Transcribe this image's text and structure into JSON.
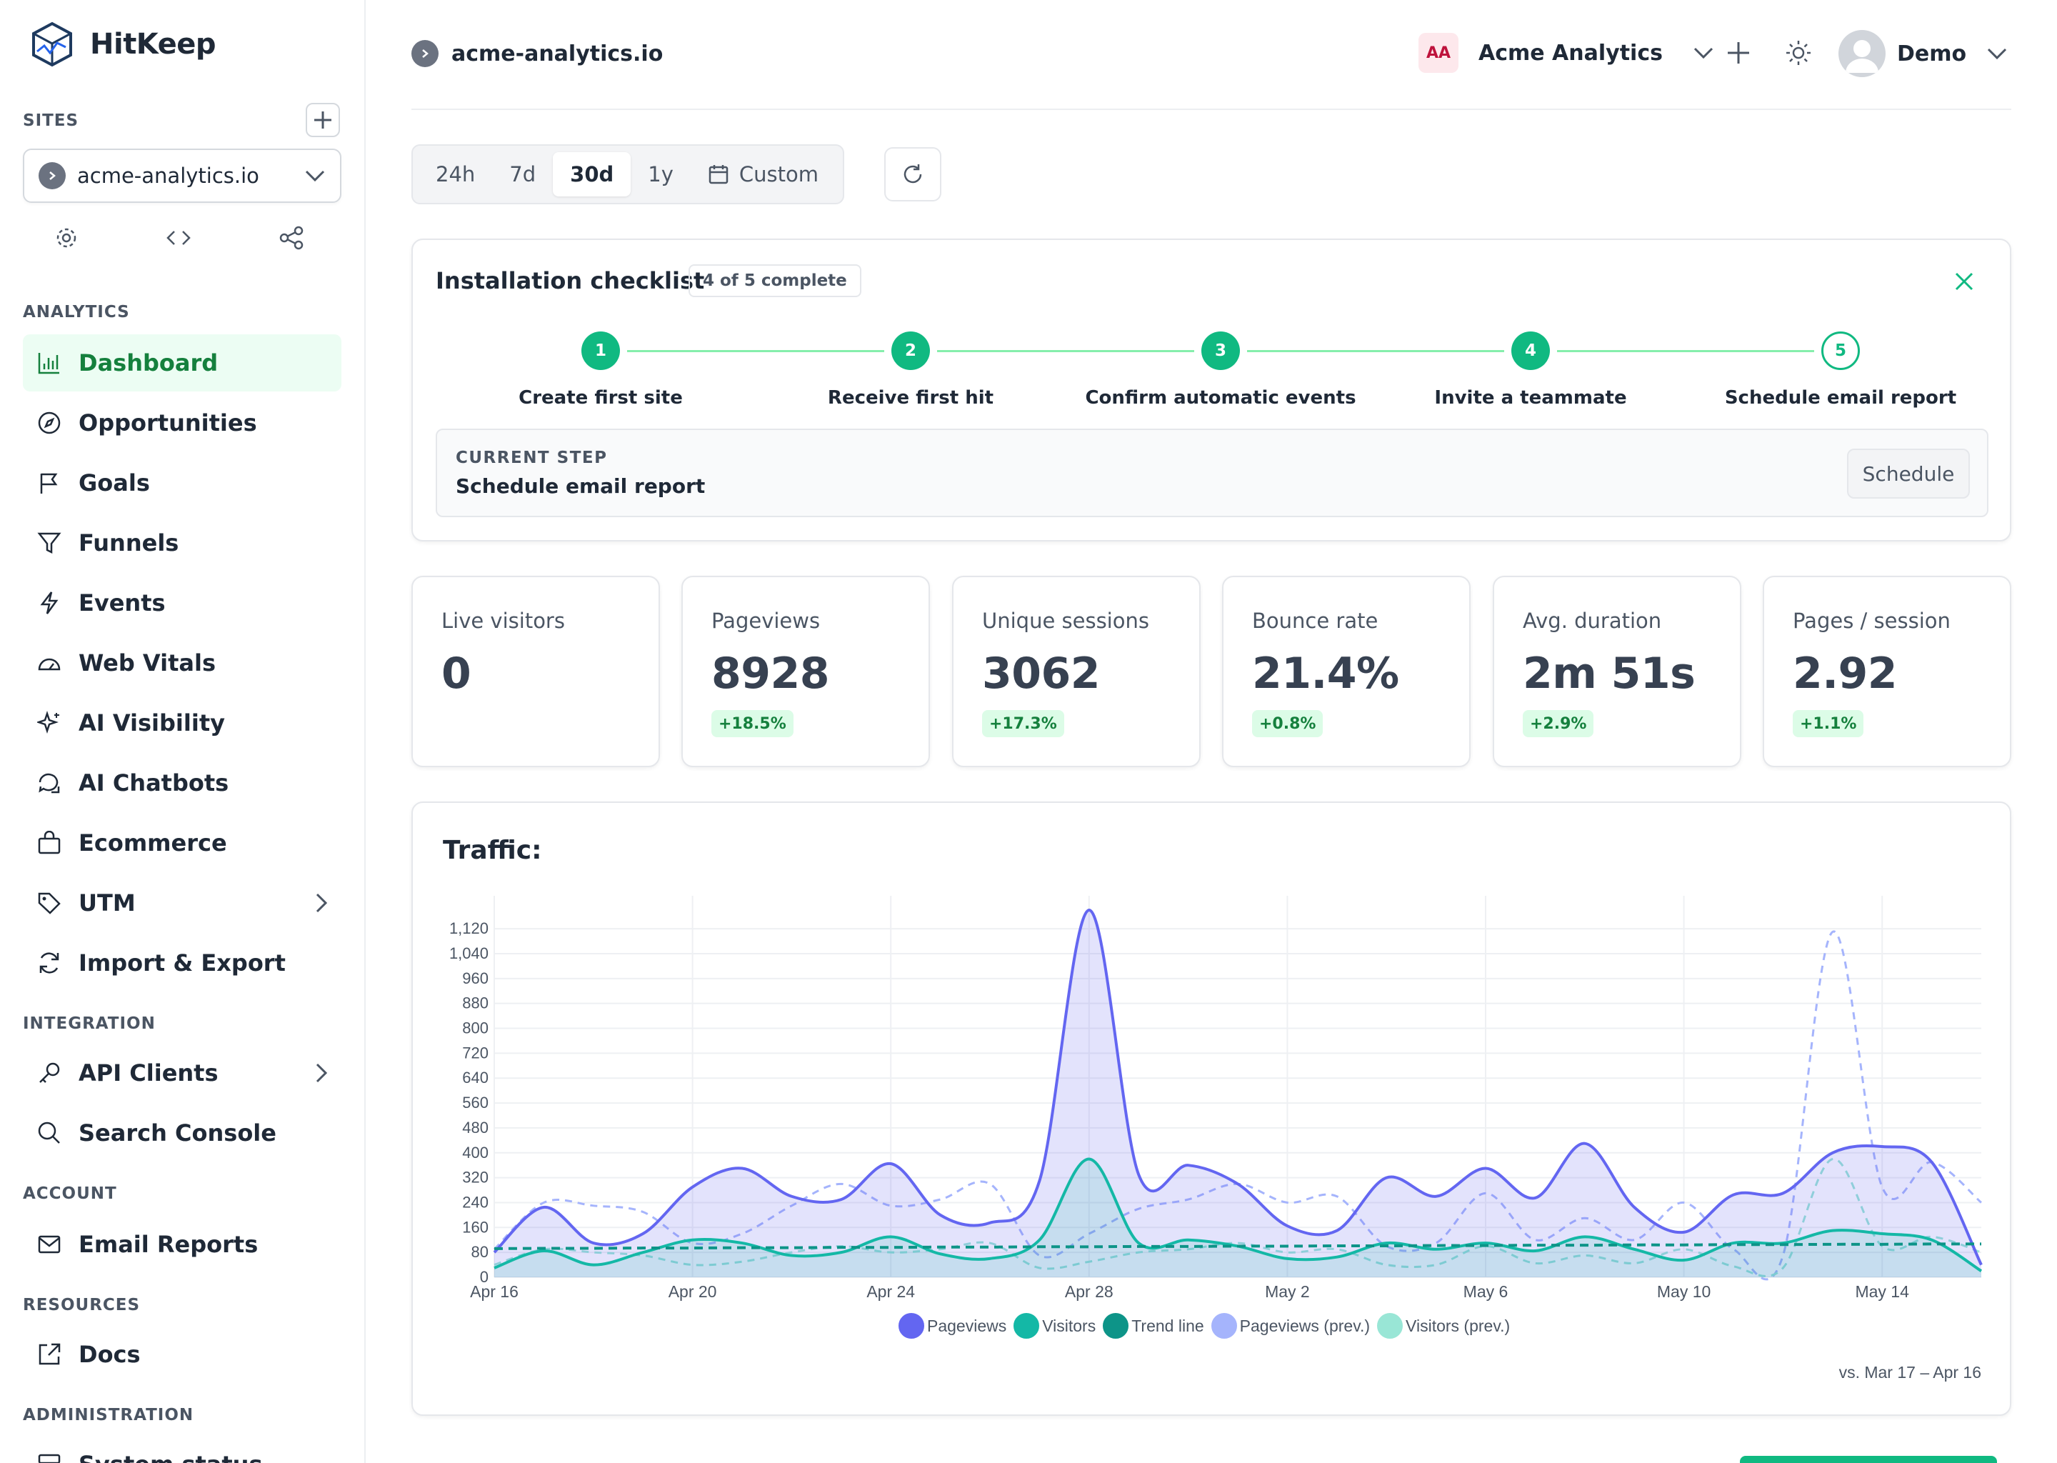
{
  "brand": {
    "name": "HitKeep"
  },
  "sidebar": {
    "sites_label": "SITES",
    "site": "acme-analytics.io",
    "analytics_label": "ANALYTICS",
    "integration_label": "INTEGRATION",
    "account_label": "ACCOUNT",
    "resources_label": "RESOURCES",
    "administration_label": "ADMINISTRATION",
    "items": [
      {
        "label": "Dashboard",
        "icon": "bar-chart-icon"
      },
      {
        "label": "Opportunities",
        "icon": "compass-icon"
      },
      {
        "label": "Goals",
        "icon": "flag-icon"
      },
      {
        "label": "Funnels",
        "icon": "funnel-icon"
      },
      {
        "label": "Events",
        "icon": "lightning-icon"
      },
      {
        "label": "Web Vitals",
        "icon": "gauge-icon"
      },
      {
        "label": "AI Visibility",
        "icon": "sparkle-icon"
      },
      {
        "label": "AI Chatbots",
        "icon": "chat-icon"
      },
      {
        "label": "Ecommerce",
        "icon": "bag-icon"
      },
      {
        "label": "UTM",
        "icon": "tag-icon"
      },
      {
        "label": "Import & Export",
        "icon": "sync-icon"
      }
    ],
    "integration_items": [
      {
        "label": "API Clients",
        "icon": "key-icon"
      },
      {
        "label": "Search Console",
        "icon": "search-icon"
      }
    ],
    "account_items": [
      {
        "label": "Email Reports",
        "icon": "mail-icon"
      }
    ],
    "resource_items": [
      {
        "label": "Docs",
        "icon": "external-link-icon"
      }
    ],
    "admin_items": [
      {
        "label": "System status",
        "icon": "server-icon"
      }
    ]
  },
  "header": {
    "site": "acme-analytics.io",
    "org_initials": "AA",
    "org_name": "Acme Analytics",
    "user": "Demo"
  },
  "range": {
    "options": [
      "24h",
      "7d",
      "30d",
      "1y",
      "Custom"
    ],
    "selected": "30d"
  },
  "checklist": {
    "title": "Installation checklist",
    "badge": "4 of 5 complete",
    "steps": [
      {
        "num": "1",
        "label": "Create first site",
        "done": true
      },
      {
        "num": "2",
        "label": "Receive first hit",
        "done": true
      },
      {
        "num": "3",
        "label": "Confirm automatic events",
        "done": true
      },
      {
        "num": "4",
        "label": "Invite a teammate",
        "done": true
      },
      {
        "num": "5",
        "label": "Schedule email report",
        "done": false
      }
    ],
    "current_label": "CURRENT STEP",
    "current_value": "Schedule email report",
    "button": "Schedule"
  },
  "stats": [
    {
      "label": "Live visitors",
      "value": "0",
      "delta": ""
    },
    {
      "label": "Pageviews",
      "value": "8928",
      "delta": "+18.5%"
    },
    {
      "label": "Unique sessions",
      "value": "3062",
      "delta": "+17.3%"
    },
    {
      "label": "Bounce rate",
      "value": "21.4%",
      "delta": "+0.8%"
    },
    {
      "label": "Avg. duration",
      "value": "2m 51s",
      "delta": "+2.9%"
    },
    {
      "label": "Pages / session",
      "value": "2.92",
      "delta": "+1.1%"
    }
  ],
  "traffic": {
    "title": "Traffic:",
    "comparison": "vs. Mar 17 – Apr 16"
  },
  "chart_data": {
    "type": "area",
    "x": [
      "Apr 16",
      "Apr 17",
      "Apr 18",
      "Apr 19",
      "Apr 20",
      "Apr 21",
      "Apr 22",
      "Apr 23",
      "Apr 24",
      "Apr 25",
      "Apr 26",
      "Apr 27",
      "Apr 28",
      "Apr 29",
      "Apr 30",
      "May 1",
      "May 2",
      "May 3",
      "May 4",
      "May 5",
      "May 6",
      "May 7",
      "May 8",
      "May 9",
      "May 10",
      "May 11",
      "May 12",
      "May 13",
      "May 14",
      "May 15",
      "May 16"
    ],
    "x_ticks": [
      "Apr 16",
      "Apr 20",
      "Apr 24",
      "Apr 28",
      "May 2",
      "May 6",
      "May 10",
      "May 14"
    ],
    "y_ticks": [
      0,
      80,
      160,
      240,
      320,
      400,
      480,
      560,
      640,
      720,
      800,
      880,
      960,
      1040,
      1120
    ],
    "ylim": [
      0,
      1180
    ],
    "series": [
      {
        "name": "Pageviews",
        "color": "#6366f1",
        "values": [
          80,
          225,
          110,
          140,
          290,
          350,
          260,
          250,
          365,
          200,
          175,
          310,
          1180,
          330,
          360,
          300,
          165,
          150,
          320,
          260,
          350,
          255,
          430,
          225,
          145,
          265,
          270,
          400,
          420,
          370,
          40
        ]
      },
      {
        "name": "Visitors",
        "color": "#14b8a6",
        "values": [
          30,
          85,
          40,
          80,
          120,
          110,
          70,
          80,
          130,
          75,
          60,
          120,
          380,
          110,
          120,
          100,
          60,
          65,
          110,
          90,
          110,
          85,
          130,
          90,
          55,
          110,
          110,
          150,
          140,
          120,
          20
        ]
      },
      {
        "name": "Trend line",
        "color": "#0d9488",
        "values": [
          92,
          93,
          93,
          94,
          94,
          95,
          95,
          96,
          96,
          97,
          97,
          98,
          98,
          99,
          99,
          100,
          100,
          101,
          101,
          102,
          102,
          103,
          103,
          104,
          104,
          105,
          105,
          106,
          106,
          107,
          107
        ]
      },
      {
        "name": "Pageviews (prev.)",
        "color": "#a5b4fc",
        "values": [
          90,
          240,
          230,
          210,
          110,
          140,
          230,
          300,
          230,
          250,
          300,
          70,
          140,
          220,
          250,
          300,
          240,
          260,
          100,
          110,
          270,
          120,
          190,
          120,
          240,
          90,
          70,
          1110,
          290,
          370,
          240
        ]
      },
      {
        "name": "Visitors (prev.)",
        "color": "#99e6d6",
        "values": [
          40,
          90,
          80,
          70,
          40,
          50,
          80,
          100,
          80,
          90,
          110,
          30,
          50,
          80,
          90,
          110,
          80,
          90,
          40,
          40,
          100,
          45,
          70,
          45,
          90,
          35,
          30,
          380,
          100,
          130,
          80
        ]
      }
    ]
  }
}
